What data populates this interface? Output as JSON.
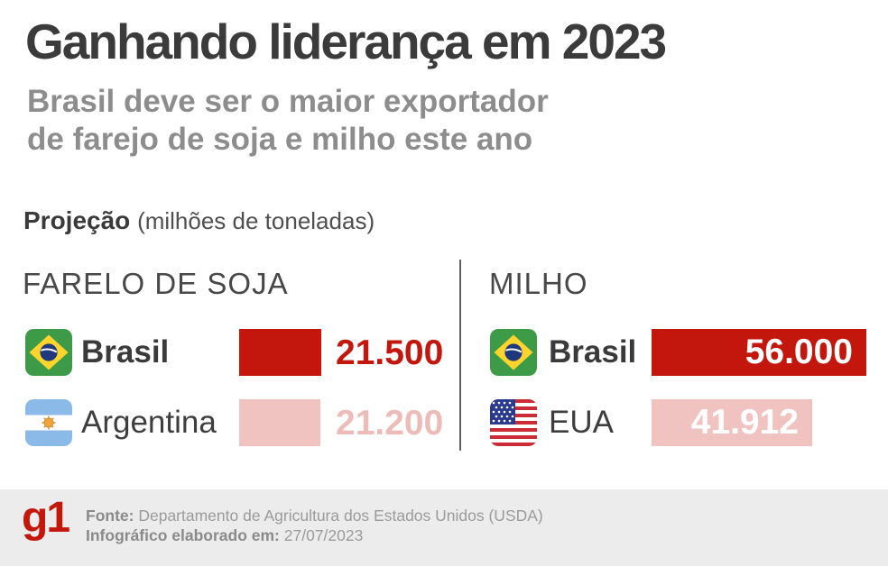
{
  "header": {
    "title": "Ganhando liderança em 2023",
    "subtitle_line1": "Brasil deve ser o maior exportador",
    "subtitle_line2": "de farejo de soja e milho este ano"
  },
  "projection": {
    "label": "Projeção",
    "unit": "(milhões de toneladas)"
  },
  "chart_data": [
    {
      "type": "bar",
      "orientation": "horizontal",
      "title": "FARELO DE SOJA",
      "unit": "milhões de toneladas",
      "categories": [
        "Brasil",
        "Argentina"
      ],
      "values": [
        21500,
        21200
      ],
      "value_labels": [
        "21.500",
        "21.200"
      ],
      "flags": [
        "brazil-flag",
        "argentina-flag"
      ],
      "highlight": [
        true,
        false
      ],
      "xlim": [
        0,
        56000
      ],
      "grid": false,
      "legend": "none"
    },
    {
      "type": "bar",
      "orientation": "horizontal",
      "title": "MILHO",
      "unit": "milhões de toneladas",
      "categories": [
        "Brasil",
        "EUA"
      ],
      "values": [
        56000,
        41912
      ],
      "value_labels": [
        "56.000",
        "41.912"
      ],
      "flags": [
        "brazil-flag",
        "usa-flag"
      ],
      "highlight": [
        true,
        false
      ],
      "xlim": [
        0,
        56000
      ],
      "grid": false,
      "legend": "none"
    }
  ],
  "footer": {
    "logo_text": "g1",
    "source_label": "Fonte:",
    "source": "Departamento de Agricultura dos Estados Unidos (USDA)",
    "date_label": "Infográfico elaborado em:",
    "date": "27/07/2023"
  },
  "colors": {
    "accent_red": "#c3170d",
    "light_pink": "#f0c3c0",
    "pink_text": "#edbcb8",
    "title_color": "#3b3b3b",
    "subtitle_color": "#8d8d8d",
    "footer_bg": "#ececec",
    "logo_red": "#c4170c"
  }
}
